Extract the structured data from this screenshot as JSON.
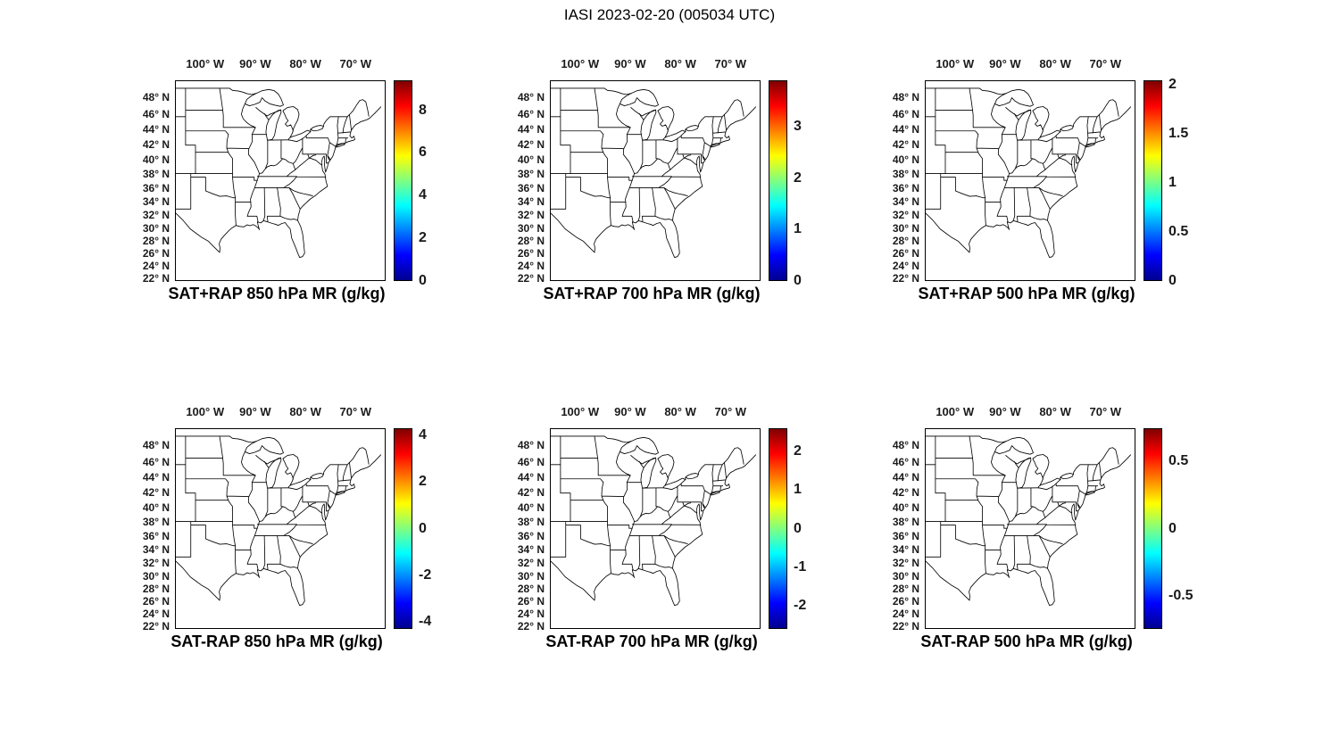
{
  "figure": {
    "title": "IASI 2023-02-20 (005034 UTC)"
  },
  "axes": {
    "lon": {
      "min_deg_east": -106,
      "max_deg_east": -64,
      "ticks": [
        {
          "deg": 100,
          "hem": "W"
        },
        {
          "deg": 90,
          "hem": "W"
        },
        {
          "deg": 80,
          "hem": "W"
        },
        {
          "deg": 70,
          "hem": "W"
        }
      ]
    },
    "lat": {
      "top_deg_north": 50,
      "bottom_deg_north": 21.5,
      "projection": "mercator",
      "ticks": [
        {
          "deg": 48,
          "hem": "N"
        },
        {
          "deg": 46,
          "hem": "N"
        },
        {
          "deg": 44,
          "hem": "N"
        },
        {
          "deg": 42,
          "hem": "N"
        },
        {
          "deg": 40,
          "hem": "N"
        },
        {
          "deg": 38,
          "hem": "N"
        },
        {
          "deg": 36,
          "hem": "N"
        },
        {
          "deg": 34,
          "hem": "N"
        },
        {
          "deg": 32,
          "hem": "N"
        },
        {
          "deg": 30,
          "hem": "N"
        },
        {
          "deg": 28,
          "hem": "N"
        },
        {
          "deg": 26,
          "hem": "N"
        },
        {
          "deg": 24,
          "hem": "N"
        },
        {
          "deg": 22,
          "hem": "N"
        }
      ]
    }
  },
  "colormap": {
    "name": "jet",
    "stops": [
      {
        "frac": 0,
        "color": "#00008f"
      },
      {
        "frac": 0.125,
        "color": "#0000ff"
      },
      {
        "frac": 0.375,
        "color": "#00ffff"
      },
      {
        "frac": 0.625,
        "color": "#ffff00"
      },
      {
        "frac": 0.875,
        "color": "#ff0000"
      },
      {
        "frac": 1,
        "color": "#800000"
      }
    ]
  },
  "panels": [
    {
      "title": "SAT+RAP 850 hPa MR (g/kg)",
      "colorbar": {
        "min": 0,
        "max": 9.4,
        "ticks": [
          8,
          6,
          4,
          2,
          0
        ]
      }
    },
    {
      "title": "SAT+RAP 700 hPa MR (g/kg)",
      "colorbar": {
        "min": 0,
        "max": 3.9,
        "ticks": [
          3,
          2,
          1,
          0
        ]
      }
    },
    {
      "title": "SAT+RAP 500 hPa MR (g/kg)",
      "colorbar": {
        "min": 0,
        "max": 2.05,
        "ticks": [
          2,
          1.5,
          1,
          0.5,
          0
        ]
      }
    },
    {
      "title": "SAT-RAP 850 hPa MR (g/kg)",
      "colorbar": {
        "min": -4.3,
        "max": 4.3,
        "ticks": [
          4,
          2,
          0,
          -2,
          -4
        ]
      }
    },
    {
      "title": "SAT-RAP 700 hPa MR (g/kg)",
      "colorbar": {
        "min": -2.6,
        "max": 2.6,
        "ticks": [
          2,
          1,
          0,
          -1,
          -2
        ]
      }
    },
    {
      "title": "SAT-RAP 500 hPa MR (g/kg)",
      "colorbar": {
        "min": -0.75,
        "max": 0.75,
        "ticks": [
          0.5,
          0,
          -0.5
        ]
      }
    }
  ],
  "chart_data": {
    "type": "map",
    "figure_title": "IASI 2023-02-20 (005034 UTC)",
    "layout": "2 rows x 3 columns of identical eastern-US state-outline maps, each with its own jet colorbar on the right",
    "plotted_data": "no gridded/colored data values visible; map interiors are blank white with black state boundaries and coastline",
    "shared_axes": {
      "lon_tick_labels": [
        "100° W",
        "90° W",
        "80° W",
        "70° W"
      ],
      "lat_tick_labels": [
        "48° N",
        "46° N",
        "44° N",
        "42° N",
        "40° N",
        "38° N",
        "36° N",
        "34° N",
        "32° N",
        "30° N",
        "28° N",
        "26° N",
        "24° N",
        "22° N"
      ]
    },
    "panels": [
      {
        "row": 1,
        "col": 1,
        "title": "SAT+RAP 850 hPa MR (g/kg)",
        "colorbar_ticks": [
          8,
          6,
          4,
          2,
          0
        ],
        "colorbar_range": [
          0,
          9.4
        ],
        "colormap": "jet",
        "units": "g/kg"
      },
      {
        "row": 1,
        "col": 2,
        "title": "SAT+RAP 700 hPa MR (g/kg)",
        "colorbar_ticks": [
          3,
          2,
          1,
          0
        ],
        "colorbar_range": [
          0,
          3.9
        ],
        "colormap": "jet",
        "units": "g/kg"
      },
      {
        "row": 1,
        "col": 3,
        "title": "SAT+RAP 500 hPa MR (g/kg)",
        "colorbar_ticks": [
          2,
          1.5,
          1,
          0.5,
          0
        ],
        "colorbar_range": [
          0,
          2.05
        ],
        "colormap": "jet",
        "units": "g/kg"
      },
      {
        "row": 2,
        "col": 1,
        "title": "SAT-RAP 850 hPa MR (g/kg)",
        "colorbar_ticks": [
          4,
          2,
          0,
          -2,
          -4
        ],
        "colorbar_range": [
          -4.3,
          4.3
        ],
        "colormap": "jet",
        "units": "g/kg"
      },
      {
        "row": 2,
        "col": 2,
        "title": "SAT-RAP 700 hPa MR (g/kg)",
        "colorbar_ticks": [
          2,
          1,
          0,
          -1,
          -2
        ],
        "colorbar_range": [
          -2.6,
          2.6
        ],
        "colormap": "jet",
        "units": "g/kg"
      },
      {
        "row": 2,
        "col": 3,
        "title": "SAT-RAP 500 hPa MR (g/kg)",
        "colorbar_ticks": [
          0.5,
          0,
          -0.5
        ],
        "colorbar_range": [
          -0.75,
          0.75
        ],
        "colormap": "jet",
        "units": "g/kg"
      }
    ]
  }
}
